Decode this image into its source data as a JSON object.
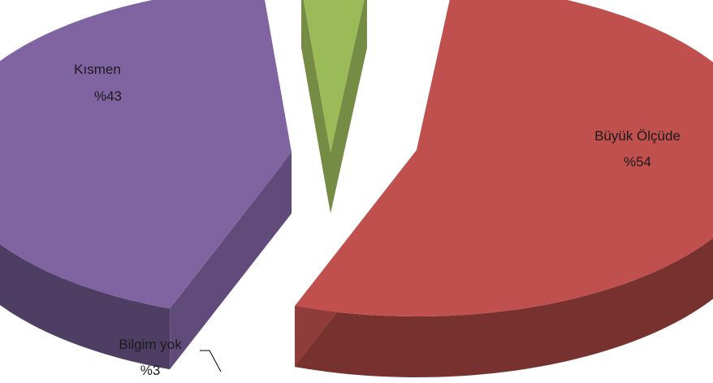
{
  "chart_data": {
    "type": "pie",
    "style": "3d-exploded",
    "slices": [
      {
        "label": "Büyük Ölçüde",
        "value": 54,
        "value_text": "%54",
        "color": "#c0504d"
      },
      {
        "label": "Kısmen",
        "value": 43,
        "value_text": "%43",
        "color": "#8064a2"
      },
      {
        "label": "Bilgim yok",
        "value": 3,
        "value_text": "%3",
        "color": "#9bbb59"
      }
    ],
    "legend": "none"
  }
}
